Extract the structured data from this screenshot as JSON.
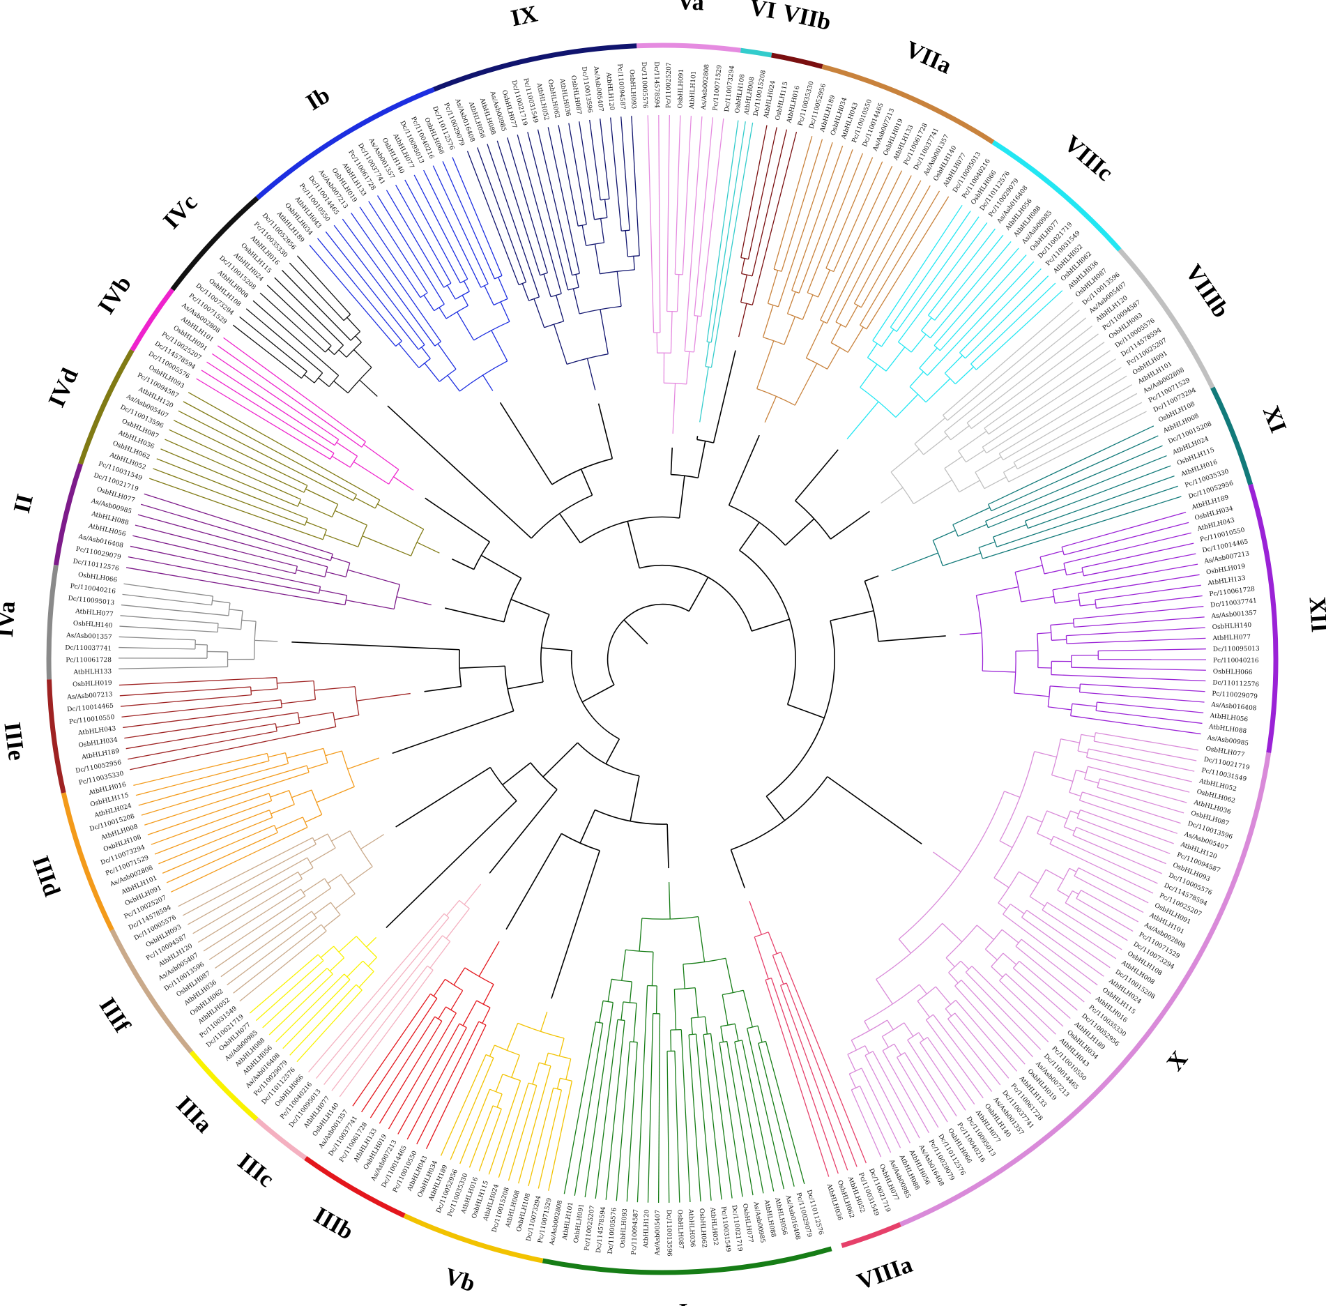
{
  "chart_data": {
    "type": "diagram",
    "kind": "circular-phylogenetic-tree",
    "ring_start_angle": 74,
    "ring_end_angle": 433,
    "tree_gap_start": 64,
    "tree_gap_end": 80,
    "clades": [
      {
        "name": "Ia",
        "color": "#167d16",
        "span": 28
      },
      {
        "name": "Vb",
        "color": "#f2c200",
        "span": 14
      },
      {
        "name": "IIIb",
        "color": "#e3161c",
        "span": 11
      },
      {
        "name": "IIIc",
        "color": "#f4b0c0",
        "span": 6
      },
      {
        "name": "IIIa",
        "color": "#f9f200",
        "span": 9
      },
      {
        "name": "IIIf",
        "color": "#c9a98a",
        "span": 14
      },
      {
        "name": "IIId",
        "color": "#f39a1a",
        "span": 14
      },
      {
        "name": "IIIe",
        "color": "#9e2222",
        "span": 11
      },
      {
        "name": "IVa",
        "color": "#8a8a8a",
        "span": 11
      },
      {
        "name": "II",
        "color": "#7d1b8a",
        "span": 10
      },
      {
        "name": "IVd",
        "color": "#807a14",
        "span": 12
      },
      {
        "name": "IVb",
        "color": "#ee22cc",
        "span": 7
      },
      {
        "name": "IVc",
        "color": "#111111",
        "span": 12
      },
      {
        "name": "Ib",
        "color": "#1c2ee0",
        "span": 20
      },
      {
        "name": "IX",
        "color": "#10146e",
        "span": 20
      },
      {
        "name": "Va",
        "color": "#e58be0",
        "span": 10
      },
      {
        "name": "VI",
        "color": "#33cccc",
        "span": 3
      },
      {
        "name": "VIIb",
        "color": "#7a0f10",
        "span": 5
      },
      {
        "name": "VIIa",
        "color": "#c8823c",
        "span": 18
      },
      {
        "name": "VIIIc",
        "color": "#22e6f2",
        "span": 16
      },
      {
        "name": "VIIIb",
        "color": "#c0c0c0",
        "span": 16
      },
      {
        "name": "XI",
        "color": "#127a7a",
        "span": 10
      },
      {
        "name": "XII",
        "color": "#9a22d6",
        "span": 26
      },
      {
        "name": "X",
        "color": "#d98ad9",
        "span": 60
      },
      {
        "name": "VIIIa",
        "color": "#e6406a",
        "span": 6
      }
    ],
    "leaf_label_samples": [
      "Dc/110112576",
      "Pc/110029079",
      "As/Asb016408",
      "AtbHLH056",
      "AtbHLH088",
      "As/Asb00985",
      "OsbHLH077",
      "Dc/110021719",
      "Pc/110031549",
      "AtbHLH052",
      "OsbHLH062",
      "AtbHLH036",
      "OsbHLH087",
      "Dc/110013596",
      "As/Asb005407",
      "AtbHLH120",
      "Pc/110094587",
      "OsbHLH093",
      "Dc/110005576",
      "Dc/114578594",
      "Pc/110025207",
      "OsbHLH091",
      "AtbHLH101",
      "As/Asb002808",
      "Pc/110071529",
      "Dc/110073294",
      "OsbHLH108",
      "AtbHLH008",
      "Dc/110015208",
      "AtbHLH024",
      "OsbHLH115",
      "AtbHLH016",
      "Pc/110035330",
      "Dc/110052956",
      "AtbHLH189",
      "OsbHLH034",
      "AtbHLH043",
      "Pc/110010550",
      "Dc/110014465",
      "As/Asb007213",
      "OsbHLH019",
      "AtbHLH133",
      "Pc/110061728",
      "Dc/110037741",
      "As/Asb001357",
      "OsbHLH140",
      "AtbHLH077",
      "Dc/110095013",
      "Pc/110040216",
      "OsbHLH066"
    ]
  }
}
